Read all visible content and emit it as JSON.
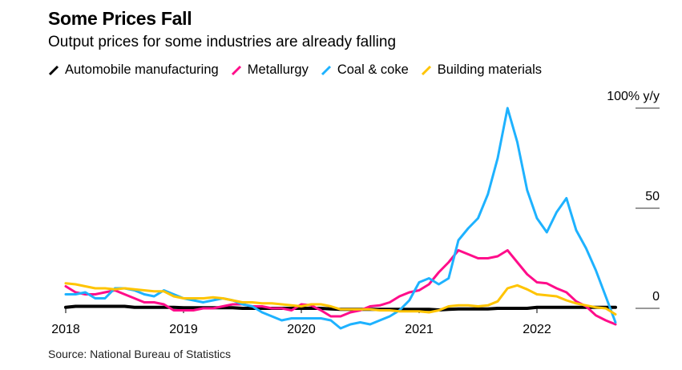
{
  "title": "Some Prices Fall",
  "subtitle": "Output prices for some industries are already falling",
  "source": "Source: National Bureau of Statistics",
  "chart_data": {
    "type": "line",
    "title": "Some Prices Fall",
    "xlabel": "",
    "ylabel": "% y/y",
    "ylim": [
      -10,
      100
    ],
    "x_start": "2018-01",
    "x_end": "2022-09",
    "frequency": "monthly",
    "x_ticks": [
      "2018",
      "2019",
      "2020",
      "2021",
      "2022"
    ],
    "y_ticks": [
      {
        "value": 100,
        "label": "100% y/y"
      },
      {
        "value": 50,
        "label": "50"
      },
      {
        "value": 0,
        "label": "0"
      }
    ],
    "legend_placement": "top-left",
    "series": [
      {
        "name": "Automobile manufacturing",
        "color": "#000000",
        "values": [
          0.5,
          1,
          1,
          1,
          1,
          1,
          1,
          0.5,
          0.5,
          0.5,
          0.5,
          0.5,
          0.3,
          0.3,
          0.3,
          0.3,
          0.3,
          0.3,
          0,
          0,
          0,
          0,
          0,
          0,
          0,
          0,
          0,
          -0.3,
          -0.5,
          -0.5,
          -0.5,
          -0.5,
          -0.5,
          -0.5,
          -0.5,
          -0.5,
          -0.5,
          -0.5,
          -0.8,
          -0.5,
          -0.3,
          -0.3,
          -0.3,
          -0.3,
          0,
          0,
          0,
          0,
          0.5,
          0.5,
          0.5,
          0.5,
          0.5,
          0.5,
          0.5,
          0.5,
          0.5
        ]
      },
      {
        "name": "Metallurgy",
        "color": "#ff0d8a",
        "values": [
          11,
          8,
          7,
          7,
          8,
          9,
          7,
          5,
          3,
          3,
          2,
          -1,
          -1,
          -1,
          0,
          0,
          1,
          2,
          2,
          1,
          1,
          0,
          0,
          -1,
          2,
          1.5,
          -1,
          -4,
          -4,
          -2,
          -1,
          1,
          1.5,
          3,
          6,
          8,
          9,
          12,
          18,
          23,
          29,
          27,
          25,
          25,
          26,
          29,
          23,
          17,
          13,
          12.5,
          10,
          8,
          3.5,
          1,
          -3.5,
          -6,
          -8
        ]
      },
      {
        "name": "Coal & coke",
        "color": "#1eb2ff",
        "values": [
          7,
          7,
          8,
          5,
          5,
          10,
          10,
          9,
          7,
          6,
          9,
          7,
          5,
          4,
          3,
          4,
          5,
          4,
          2,
          1,
          -2,
          -4,
          -6,
          -5,
          -5,
          -5,
          -5,
          -6,
          -10,
          -8,
          -7,
          -8,
          -6,
          -4,
          -1,
          4,
          13,
          15,
          12,
          15,
          34,
          40,
          45,
          57,
          75,
          100,
          83,
          59,
          45,
          38,
          48,
          55,
          39,
          30,
          19,
          6,
          -7
        ]
      },
      {
        "name": "Building materials",
        "color": "#ffc400",
        "values": [
          12.5,
          12,
          11,
          10,
          10,
          9.5,
          10,
          9.5,
          9,
          8.5,
          8.5,
          6,
          5,
          5,
          5,
          5.5,
          5,
          4,
          3,
          3,
          2.5,
          2.5,
          2,
          1.5,
          1,
          2,
          2,
          1,
          -0.5,
          -0.5,
          -0.5,
          -0.5,
          -1,
          -1,
          -1.5,
          -1.5,
          -1.5,
          -2,
          -1,
          1,
          1.5,
          1.5,
          1,
          1.5,
          3.5,
          10,
          11.5,
          9.5,
          7,
          6.5,
          6,
          4,
          2.5,
          1.5,
          0.5,
          0,
          -3
        ]
      }
    ]
  }
}
